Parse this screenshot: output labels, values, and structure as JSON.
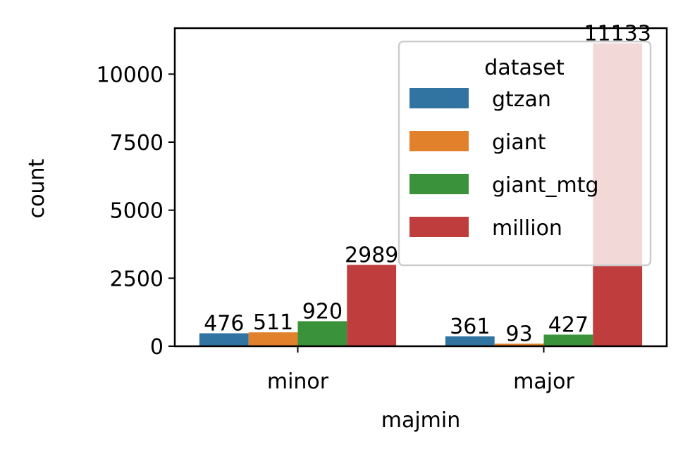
{
  "chart_data": {
    "type": "bar",
    "categories": [
      "minor",
      "major"
    ],
    "series": [
      {
        "name": "gtzan",
        "values": [
          476,
          361
        ],
        "color": "#3274a1"
      },
      {
        "name": "giant",
        "values": [
          511,
          93
        ],
        "color": "#e1812c"
      },
      {
        "name": "giant_mtg",
        "values": [
          920,
          427
        ],
        "color": "#3a923a"
      },
      {
        "name": "million",
        "values": [
          2989,
          11133
        ],
        "color": "#c03d3e"
      }
    ],
    "title": "",
    "xlabel": "majmin",
    "ylabel": "count",
    "ylim": [
      0,
      11690
    ],
    "yticks": [
      0,
      2500,
      5000,
      7500,
      10000
    ],
    "ytick_labels": [
      "0",
      "2500",
      "5000",
      "7500",
      "10000"
    ],
    "grid": false,
    "legend": {
      "title": "dataset",
      "placement": "upper right"
    }
  }
}
